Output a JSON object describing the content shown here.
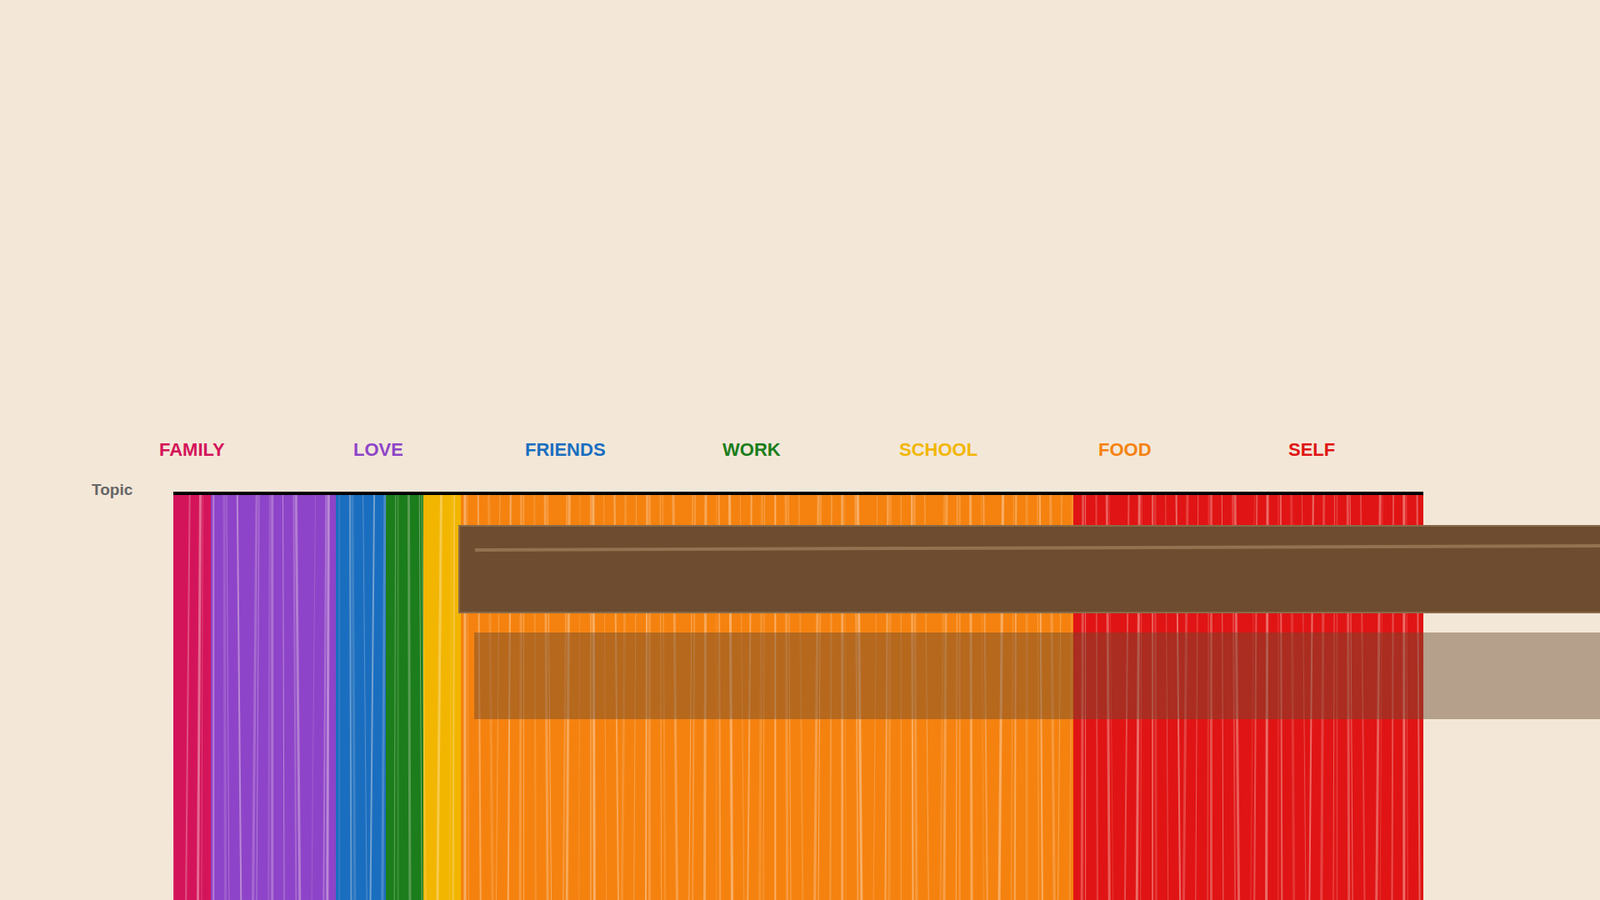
{
  "chart_data": {
    "type": "bar",
    "orientation": "horizontal",
    "stacked": true,
    "ylabel": "Topic",
    "categories": [
      null
    ],
    "series": [
      {
        "name": "FAMILY",
        "color": "#d4145a",
        "values": [
          3
        ]
      },
      {
        "name": "LOVE",
        "color": "#8e44c8",
        "values": [
          10
        ]
      },
      {
        "name": "FRIENDS",
        "color": "#1a6ec0",
        "values": [
          4
        ]
      },
      {
        "name": "WORK",
        "color": "#1b7d1b",
        "values": [
          3
        ]
      },
      {
        "name": "SCHOOL",
        "color": "#f2b600",
        "values": [
          3
        ]
      },
      {
        "name": "FOOD",
        "color": "#f5820f",
        "values": [
          49
        ]
      },
      {
        "name": "SELF",
        "color": "#e01414",
        "values": [
          28
        ]
      }
    ],
    "xlim": [
      0,
      100
    ],
    "xticks": [],
    "legend": "top",
    "tick_labels": false,
    "grid": false
  }
}
